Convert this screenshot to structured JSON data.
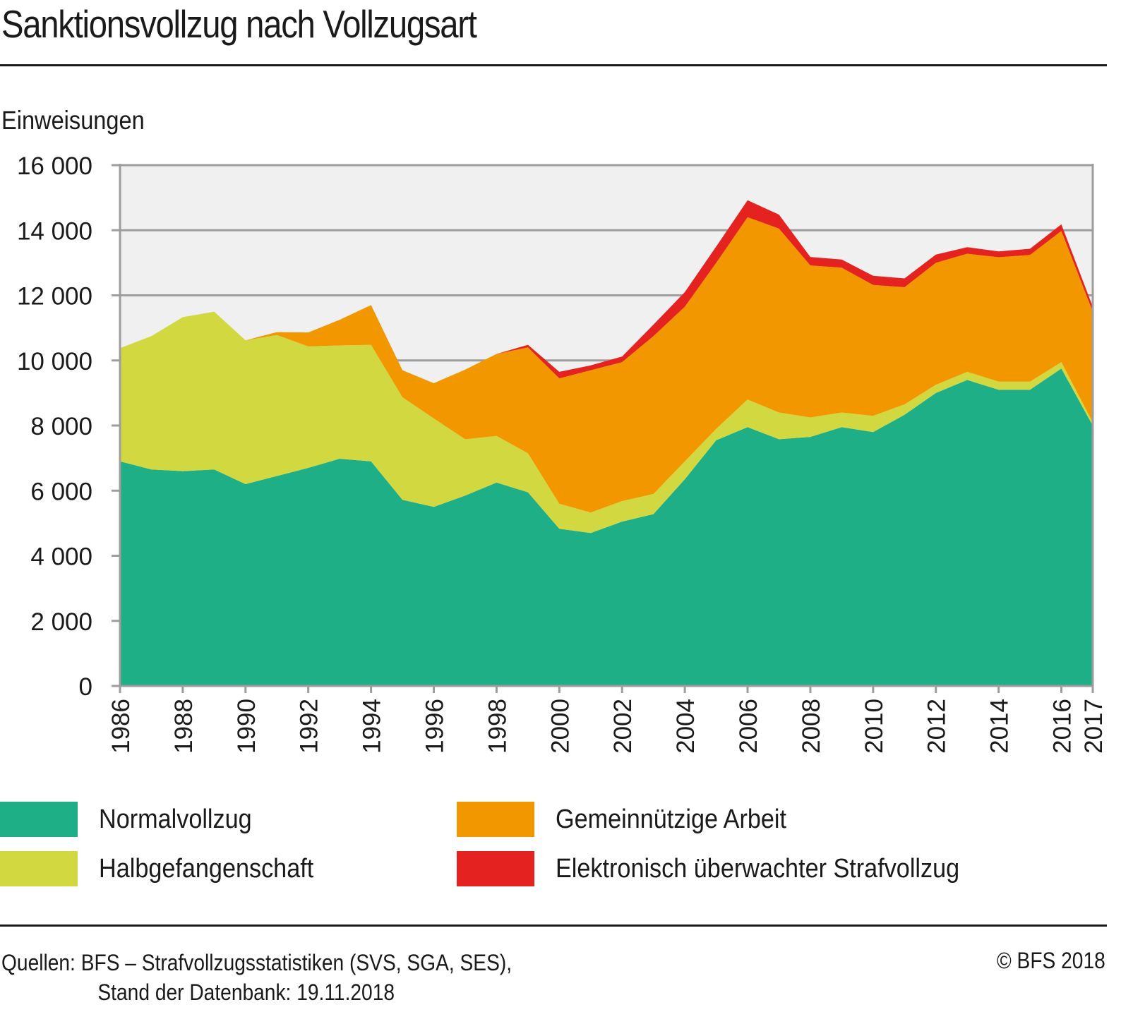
{
  "title": "Sanktionsvollzug nach Vollzugsart",
  "footer": {
    "source_line1": "Quellen: BFS – Strafvollzugsstatistiken (SVS, SGA, SES),",
    "source_line2": "Stand der Datenbank: 19.11.2018",
    "copyright": "© BFS 2018"
  },
  "chart_data": {
    "type": "area",
    "stacked": true,
    "title": "Sanktionsvollzug nach Vollzugsart",
    "xlabel": "",
    "ylabel": "Einweisungen",
    "ylim": [
      0,
      16000
    ],
    "yticks": [
      0,
      2000,
      4000,
      6000,
      8000,
      10000,
      12000,
      14000,
      16000
    ],
    "ytick_labels": [
      "0",
      "2 000",
      "4 000",
      "6 000",
      "8 000",
      "10 000",
      "12 000",
      "14 000",
      "16 000"
    ],
    "xlim": [
      1986,
      2017
    ],
    "xtick_labels": [
      "1986",
      "1988",
      "1990",
      "1992",
      "1994",
      "1996",
      "1998",
      "2000",
      "2002",
      "2004",
      "2006",
      "2008",
      "2010",
      "2012",
      "2014",
      "2016",
      "2017"
    ],
    "grid": true,
    "plot_background": "#f0f0f0",
    "legend_position": "bottom",
    "x": [
      1986,
      1987,
      1988,
      1989,
      1990,
      1991,
      1992,
      1993,
      1994,
      1995,
      1996,
      1997,
      1998,
      1999,
      2000,
      2001,
      2002,
      2003,
      2004,
      2005,
      2006,
      2007,
      2008,
      2009,
      2010,
      2011,
      2012,
      2013,
      2014,
      2015,
      2016,
      2017
    ],
    "series": [
      {
        "name": "Normalvollzug",
        "color": "#1faf87",
        "values": [
          6900,
          6650,
          6600,
          6650,
          6200,
          6450,
          6700,
          6980,
          6900,
          5720,
          5500,
          5850,
          6250,
          5950,
          4830,
          4700,
          5050,
          5280,
          6350,
          7550,
          7950,
          7580,
          7650,
          7950,
          7800,
          8330,
          9000,
          9400,
          9100,
          9100,
          9750,
          8000
        ]
      },
      {
        "name": "Halbgefangenschaft",
        "color": "#d2d940",
        "values": [
          3480,
          4100,
          4730,
          4850,
          4420,
          4330,
          3730,
          3480,
          3580,
          3150,
          2720,
          1730,
          1430,
          1200,
          770,
          630,
          630,
          620,
          550,
          350,
          850,
          820,
          600,
          450,
          500,
          320,
          250,
          250,
          250,
          250,
          200,
          100
        ]
      },
      {
        "name": "Gemeinnützige Arbeit",
        "color": "#f39700",
        "values": [
          0,
          0,
          0,
          0,
          0,
          90,
          430,
          790,
          1220,
          830,
          1080,
          2140,
          2520,
          3250,
          3850,
          4370,
          4270,
          4850,
          4750,
          5100,
          5600,
          5650,
          4670,
          4450,
          4020,
          3600,
          3750,
          3630,
          3820,
          3890,
          4030,
          3400
        ]
      },
      {
        "name": "Elektronisch überwachter Strafvollzug",
        "color": "#e42320",
        "values": [
          0,
          0,
          0,
          0,
          0,
          0,
          0,
          0,
          0,
          0,
          0,
          0,
          0,
          80,
          200,
          150,
          170,
          350,
          450,
          500,
          520,
          430,
          260,
          250,
          280,
          270,
          250,
          200,
          180,
          190,
          200,
          150
        ]
      }
    ]
  }
}
